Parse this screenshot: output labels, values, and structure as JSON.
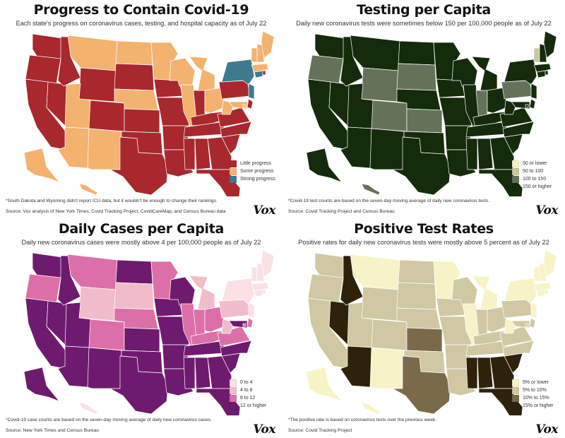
{
  "panels": [
    {
      "title": "Progress to Contain Covid-19",
      "subtitle": "Each state's progress on coronavirus cases, testing, and hospital capacity as of July 22",
      "legend": [
        {
          "label": "Little progress",
          "color": "#a8282d"
        },
        {
          "label": "Some progress",
          "color": "#f4b26f"
        },
        {
          "label": "Strong progress",
          "color": "#3e7a8e"
        }
      ],
      "note": "*South Dakota and Wyoming didn't report ICU data, but it wouldn't be enough to change their rankings.",
      "source": "Source: Vox analysis of New York Times, Covid Tracking Project, CovidCareMap, and Census Bureau data",
      "brand": "Vox"
    },
    {
      "title": "Testing per Capita",
      "subtitle": "Daily new coronavirus tests were sometimes below 150 per 100,000 people as of July 22",
      "legend": [
        {
          "label": "50 or lower",
          "color": "#f6f2c6"
        },
        {
          "label": "50 to 100",
          "color": "#c8c7a0"
        },
        {
          "label": "100 to 150",
          "color": "#65725a"
        },
        {
          "label": "150 or higher",
          "color": "#142b0c"
        }
      ],
      "note": "*Covid-19 test counts are based on the seven-day moving average of daily new coronavirus tests.",
      "source": "Source: Covid Tracking Project and Census Bureau",
      "brand": "Vox"
    },
    {
      "title": "Daily Cases per Capita",
      "subtitle": "Daily new coronavirus cases were mostly above 4 per 100,000 people as of July 22",
      "legend": [
        {
          "label": "0 to 4",
          "color": "#fbe1e4"
        },
        {
          "label": "4 to 8",
          "color": "#f1bcc9"
        },
        {
          "label": "8 to 12",
          "color": "#dd6fa8"
        },
        {
          "label": "12 or higher",
          "color": "#6e1a6e"
        }
      ],
      "note": "*Covid-19 case counts are based on the seven-day moving average of daily new coronavirus cases.",
      "source": "Source: New York Times and Census Bureau",
      "brand": "Vox"
    },
    {
      "title": "Positive Test Rates",
      "subtitle": "Positive rates for daily new coronavirus tests were mostly above 5 percent as of July 22",
      "legend": [
        {
          "label": "5% or lower",
          "color": "#f8f2c7"
        },
        {
          "label": "5% to 10%",
          "color": "#cfc8a3"
        },
        {
          "label": "10% to 15%",
          "color": "#7b6a4a"
        },
        {
          "label": "15% or higher",
          "color": "#2e220b"
        }
      ],
      "note": "*The positive rate is based on coronavirus tests over the previous week.",
      "source": "Source: Covid Tracking Project",
      "brand": "Vox"
    }
  ],
  "chart_data": [
    {
      "type": "choropleth",
      "title": "Progress to Contain Covid-19",
      "categories": [
        "Little progress",
        "Some progress",
        "Strong progress"
      ],
      "states": {
        "WA": 0,
        "OR": 0,
        "CA": 0,
        "NV": 0,
        "ID": 0,
        "MT": 1,
        "WY": 0,
        "UT": 1,
        "AZ": 1,
        "CO": 0,
        "NM": 1,
        "ND": 1,
        "SD": 0,
        "NE": 1,
        "KS": 0,
        "OK": 0,
        "TX": 0,
        "MN": 1,
        "IA": 0,
        "MO": 0,
        "AR": 0,
        "LA": 0,
        "WI": 1,
        "IL": 1,
        "IN": 0,
        "MI": 1,
        "OH": 1,
        "KY": 0,
        "TN": 0,
        "MS": 0,
        "AL": 0,
        "GA": 0,
        "FL": 0,
        "SC": 0,
        "NC": 0,
        "VA": 0,
        "WV": 1,
        "PA": 0,
        "NY": 2,
        "NJ": 2,
        "DE": 0,
        "MD": 1,
        "CT": 2,
        "RI": 0,
        "MA": 1,
        "VT": 1,
        "NH": 1,
        "ME": 1,
        "AK": 1,
        "HI": 1,
        "DC": 1
      }
    },
    {
      "type": "choropleth",
      "title": "Testing per Capita",
      "categories": [
        "50 or lower",
        "50 to 100",
        "100 to 150",
        "150 or higher"
      ],
      "states": {
        "WA": 3,
        "OR": 2,
        "CA": 3,
        "NV": 3,
        "ID": 3,
        "MT": 3,
        "WY": 2,
        "UT": 3,
        "AZ": 3,
        "CO": 2,
        "NM": 3,
        "ND": 3,
        "SD": 2,
        "NE": 3,
        "KS": 2,
        "OK": 3,
        "TX": 3,
        "MN": 3,
        "IA": 3,
        "MO": 3,
        "AR": 3,
        "LA": 3,
        "WI": 3,
        "IL": 3,
        "IN": 2,
        "MI": 3,
        "OH": 3,
        "KY": 3,
        "TN": 3,
        "MS": 3,
        "AL": 3,
        "GA": 3,
        "FL": 3,
        "SC": 3,
        "NC": 3,
        "VA": 3,
        "WV": 3,
        "PA": 2,
        "NY": 3,
        "NJ": 3,
        "DE": 3,
        "MD": 3,
        "CT": 3,
        "RI": 3,
        "MA": 3,
        "VT": 1,
        "NH": 3,
        "ME": 3,
        "AK": 3,
        "HI": 2,
        "DC": 3
      }
    },
    {
      "type": "choropleth",
      "title": "Daily Cases per Capita",
      "categories": [
        "0 to 4",
        "4 to 8",
        "8 to 12",
        "12 or higher"
      ],
      "states": {
        "WA": 3,
        "OR": 2,
        "CA": 3,
        "NV": 3,
        "ID": 3,
        "MT": 2,
        "WY": 1,
        "UT": 3,
        "AZ": 3,
        "CO": 2,
        "NM": 3,
        "ND": 3,
        "SD": 1,
        "NE": 2,
        "KS": 3,
        "OK": 3,
        "TX": 3,
        "MN": 2,
        "IA": 3,
        "MO": 3,
        "AR": 3,
        "LA": 3,
        "WI": 3,
        "IL": 2,
        "IN": 2,
        "MI": 1,
        "OH": 2,
        "KY": 2,
        "TN": 3,
        "MS": 3,
        "AL": 3,
        "GA": 3,
        "FL": 3,
        "SC": 3,
        "NC": 3,
        "VA": 2,
        "WV": 1,
        "PA": 1,
        "NY": 0,
        "NJ": 0,
        "DE": 2,
        "MD": 3,
        "CT": 0,
        "RI": 0,
        "MA": 0,
        "VT": 0,
        "NH": 0,
        "ME": 0,
        "AK": 3,
        "HI": 0,
        "DC": 2
      }
    },
    {
      "type": "choropleth",
      "title": "Positive Test Rates",
      "categories": [
        "5% or lower",
        "5% to 10%",
        "10% to 15%",
        "15% or higher"
      ],
      "states": {
        "WA": 1,
        "OR": 1,
        "CA": 1,
        "NV": 3,
        "ID": 3,
        "MT": 0,
        "WY": 1,
        "UT": 1,
        "AZ": 3,
        "CO": 1,
        "NM": 0,
        "ND": 1,
        "SD": 1,
        "NE": 1,
        "KS": 2,
        "OK": 1,
        "TX": 2,
        "MN": 0,
        "IA": 1,
        "MO": 1,
        "AR": 1,
        "LA": 1,
        "WI": 1,
        "IL": 0,
        "IN": 1,
        "MI": 0,
        "OH": 1,
        "KY": 1,
        "TN": 1,
        "MS": 3,
        "AL": 3,
        "GA": 3,
        "FL": 3,
        "SC": 3,
        "NC": 1,
        "VA": 1,
        "WV": 0,
        "PA": 1,
        "NY": 0,
        "NJ": 0,
        "DE": 1,
        "MD": 1,
        "CT": 0,
        "RI": 0,
        "MA": 0,
        "VT": 0,
        "NH": 0,
        "ME": 0,
        "AK": 0,
        "HI": 0,
        "DC": 1
      }
    }
  ]
}
